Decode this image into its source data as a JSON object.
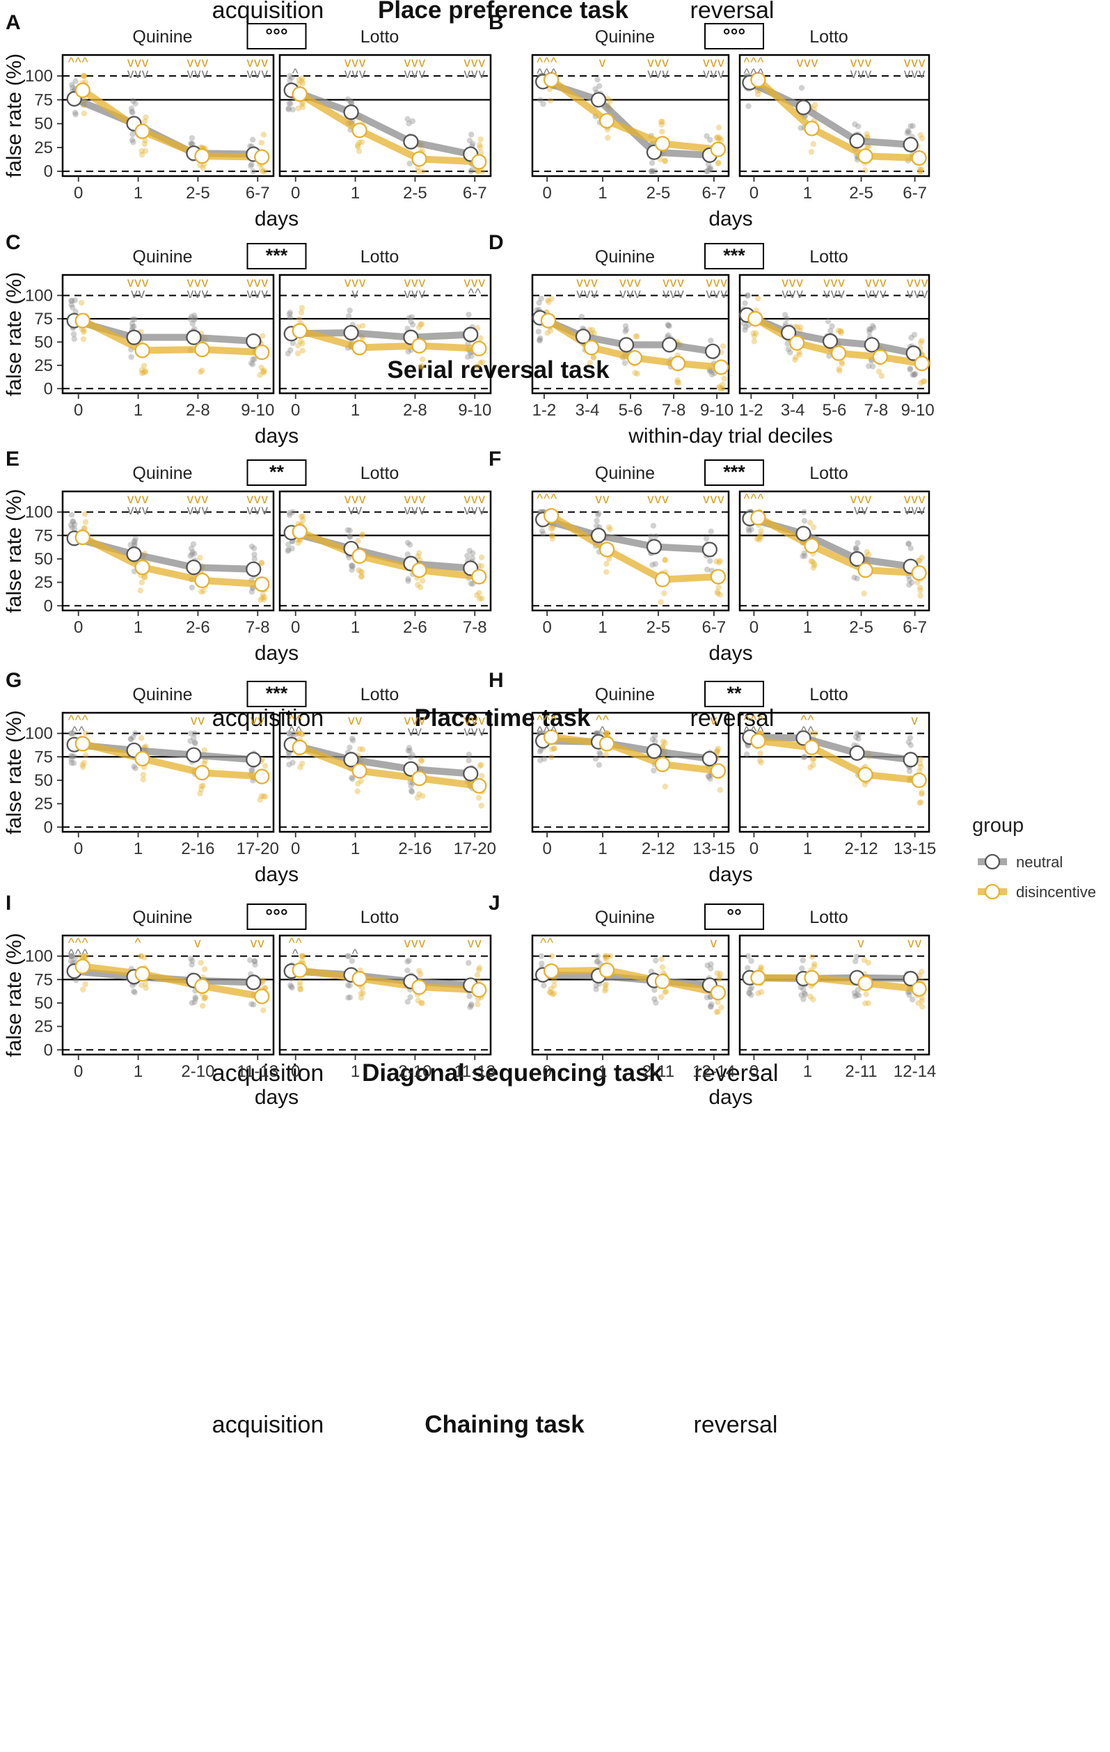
{
  "colors": {
    "neutral": "#8c8c8c",
    "disincentive": "#e6b12e",
    "neutral_sig": "#7f7f7f",
    "disincentive_sig": "#d4a020"
  },
  "legend": {
    "title": "group",
    "items": [
      "neutral",
      "disincentive"
    ]
  },
  "y_axis": {
    "label": "false rate (%)",
    "ticks": [
      0,
      25,
      50,
      75,
      100
    ],
    "ylim": [
      -5,
      122
    ],
    "dashed_lines": [
      0,
      100
    ],
    "solid_line": 75
  },
  "labels": {
    "quinine": "Quinine",
    "lotto": "Lotto"
  },
  "tasks": [
    {
      "title": "Place preference task",
      "left": "acquisition",
      "right": "reversal"
    },
    {
      "title": "Serial reversal task",
      "left": "",
      "right": ""
    },
    {
      "title": "Place time task",
      "left": "acquisition",
      "right": "reversal"
    },
    {
      "title": "Diagonal sequencing task",
      "left": "acquisition",
      "right": "reversal"
    },
    {
      "title": "Chaining task",
      "left": "acquisition",
      "right": "reversal"
    }
  ],
  "chart_data": [
    {
      "letter": "A",
      "type": "line",
      "compare": "°°°",
      "xlabel": "days",
      "categories": [
        "0",
        "1",
        "2-5",
        "6-7"
      ],
      "quinine": {
        "neutral": [
          76,
          50,
          19,
          18
        ],
        "disincentive": [
          85,
          42,
          16,
          15
        ],
        "neutral_sig": [
          "",
          "vvv",
          "vvv",
          "vvv"
        ],
        "disincentive_sig": [
          "^^^",
          "vvv",
          "vvv",
          "vvv"
        ]
      },
      "lotto": {
        "neutral": [
          85,
          62,
          31,
          18
        ],
        "disincentive": [
          81,
          43,
          13,
          10
        ],
        "neutral_sig": [
          "^",
          "vvv",
          "vvv",
          "vvv"
        ],
        "disincentive_sig": [
          "",
          "vvv",
          "vvv",
          "vvv"
        ]
      }
    },
    {
      "letter": "B",
      "type": "line",
      "compare": "°°°",
      "xlabel": "days",
      "categories": [
        "0",
        "1",
        "2-5",
        "6-7"
      ],
      "quinine": {
        "neutral": [
          94,
          75,
          20,
          17
        ],
        "disincentive": [
          96,
          53,
          29,
          23
        ],
        "neutral_sig": [
          "^^^",
          "",
          "vvv",
          "vvv"
        ],
        "disincentive_sig": [
          "^^^",
          "v",
          "vvv",
          "vvv"
        ]
      },
      "lotto": {
        "neutral": [
          93,
          67,
          32,
          28
        ],
        "disincentive": [
          96,
          45,
          16,
          14
        ],
        "neutral_sig": [
          "^^^",
          "",
          "vvv",
          "vvv"
        ],
        "disincentive_sig": [
          "^^^",
          "vvv",
          "vvv",
          "vvv"
        ]
      }
    },
    {
      "letter": "C",
      "type": "line",
      "compare": "***",
      "xlabel": "days",
      "categories": [
        "0",
        "1",
        "2-8",
        "9-10"
      ],
      "quinine": {
        "neutral": [
          73,
          55,
          55,
          51
        ],
        "disincentive": [
          73,
          41,
          42,
          39
        ],
        "neutral_sig": [
          "",
          "vv",
          "vvv",
          "vvv"
        ],
        "disincentive_sig": [
          "",
          "vvv",
          "vvv",
          "vvv"
        ]
      },
      "lotto": {
        "neutral": [
          59,
          60,
          55,
          58
        ],
        "disincentive": [
          62,
          44,
          46,
          43
        ],
        "neutral_sig": [
          "",
          "v",
          "vvv",
          "^^"
        ],
        "disincentive_sig": [
          "",
          "vvv",
          "vvv",
          "vvv"
        ]
      }
    },
    {
      "letter": "D",
      "type": "line",
      "compare": "***",
      "xlabel": "within-day trial deciles",
      "categories": [
        "1-2",
        "3-4",
        "5-6",
        "7-8",
        "9-10"
      ],
      "quinine": {
        "neutral": [
          76,
          56,
          47,
          47,
          40
        ],
        "disincentive": [
          73,
          44,
          33,
          27,
          23
        ],
        "neutral_sig": [
          "",
          "vvv",
          "vvv",
          "vvv",
          "vvv"
        ],
        "disincentive_sig": [
          "",
          "vvv",
          "vvv",
          "vvv",
          "vvv"
        ]
      },
      "lotto": {
        "neutral": [
          79,
          60,
          51,
          47,
          38
        ],
        "disincentive": [
          75,
          49,
          38,
          34,
          27
        ],
        "neutral_sig": [
          "",
          "vvv",
          "vvv",
          "vvv",
          "vvv"
        ],
        "disincentive_sig": [
          "",
          "vvv",
          "vvv",
          "vvv",
          "vvv"
        ]
      }
    },
    {
      "letter": "E",
      "type": "line",
      "compare": "**",
      "xlabel": "days",
      "categories": [
        "0",
        "1",
        "2-6",
        "7-8"
      ],
      "quinine": {
        "neutral": [
          72,
          55,
          41,
          39
        ],
        "disincentive": [
          73,
          41,
          27,
          23
        ],
        "neutral_sig": [
          "",
          "vvv",
          "vvv",
          "vvv"
        ],
        "disincentive_sig": [
          "",
          "vvv",
          "vvv",
          "vvv"
        ]
      },
      "lotto": {
        "neutral": [
          78,
          61,
          45,
          40
        ],
        "disincentive": [
          79,
          53,
          38,
          31
        ],
        "neutral_sig": [
          "",
          "vv",
          "vvv",
          "vvv"
        ],
        "disincentive_sig": [
          "",
          "vvv",
          "vvv",
          "vvv"
        ]
      }
    },
    {
      "letter": "F",
      "type": "line",
      "compare": "***",
      "xlabel": "days",
      "categories": [
        "0",
        "1",
        "2-5",
        "6-7"
      ],
      "quinine": {
        "neutral": [
          92,
          75,
          63,
          60
        ],
        "disincentive": [
          96,
          60,
          28,
          31
        ],
        "neutral_sig": [
          "",
          "",
          "",
          ""
        ],
        "disincentive_sig": [
          "^^^",
          "vv",
          "vvv",
          "vvv"
        ]
      },
      "lotto": {
        "neutral": [
          93,
          77,
          50,
          42
        ],
        "disincentive": [
          94,
          64,
          38,
          35
        ],
        "neutral_sig": [
          "",
          "",
          "vv",
          "vvv"
        ],
        "disincentive_sig": [
          "^^^",
          "",
          "vvv",
          "vvv"
        ]
      }
    },
    {
      "letter": "G",
      "type": "line",
      "compare": "***",
      "xlabel": "days",
      "categories": [
        "0",
        "1",
        "2-16",
        "17-20"
      ],
      "quinine": {
        "neutral": [
          88,
          82,
          77,
          72
        ],
        "disincentive": [
          89,
          73,
          58,
          54
        ],
        "neutral_sig": [
          "^^",
          "",
          "",
          ""
        ],
        "disincentive_sig": [
          "^^^",
          "",
          "vv",
          "vv"
        ]
      },
      "lotto": {
        "neutral": [
          88,
          72,
          62,
          57
        ],
        "disincentive": [
          85,
          60,
          52,
          44
        ],
        "neutral_sig": [
          "^^",
          "",
          "vv",
          "vvv"
        ],
        "disincentive_sig": [
          "^^",
          "vv",
          "vvv",
          "vvv"
        ]
      }
    },
    {
      "letter": "H",
      "type": "line",
      "compare": "**",
      "xlabel": "days",
      "categories": [
        "0",
        "1",
        "2-12",
        "13-15"
      ],
      "quinine": {
        "neutral": [
          92,
          91,
          81,
          73
        ],
        "disincentive": [
          96,
          89,
          67,
          60
        ],
        "neutral_sig": [
          "^^^",
          "^",
          "",
          ""
        ],
        "disincentive_sig": [
          "^^^",
          "^^",
          "",
          "v"
        ]
      },
      "lotto": {
        "neutral": [
          96,
          95,
          79,
          72
        ],
        "disincentive": [
          92,
          85,
          56,
          50
        ],
        "neutral_sig": [
          "^^^",
          "^^",
          "",
          ""
        ],
        "disincentive_sig": [
          "^^^",
          "^^",
          "",
          "v"
        ]
      }
    },
    {
      "letter": "I",
      "type": "line",
      "compare": "°°°",
      "xlabel": "days",
      "categories": [
        "0",
        "1",
        "2-10",
        "11-13"
      ],
      "quinine": {
        "neutral": [
          84,
          78,
          74,
          72
        ],
        "disincentive": [
          89,
          81,
          68,
          57
        ],
        "neutral_sig": [
          "^^^",
          "",
          "",
          ""
        ],
        "disincentive_sig": [
          "^^^",
          "^",
          "v",
          "vv"
        ]
      },
      "lotto": {
        "neutral": [
          84,
          80,
          73,
          69
        ],
        "disincentive": [
          85,
          76,
          67,
          64
        ],
        "neutral_sig": [
          "^",
          "^",
          "",
          ""
        ],
        "disincentive_sig": [
          "^^",
          "",
          "vvv",
          "vv"
        ]
      }
    },
    {
      "letter": "J",
      "type": "line",
      "compare": "°°",
      "xlabel": "days",
      "categories": [
        "0",
        "1",
        "2-11",
        "12-14"
      ],
      "quinine": {
        "neutral": [
          80,
          79,
          74,
          69
        ],
        "disincentive": [
          84,
          85,
          73,
          61
        ],
        "neutral_sig": [
          "",
          "",
          "",
          ""
        ],
        "disincentive_sig": [
          "^^",
          "",
          "",
          "v"
        ]
      },
      "lotto": {
        "neutral": [
          77,
          76,
          77,
          76
        ],
        "disincentive": [
          77,
          77,
          71,
          65
        ],
        "neutral_sig": [
          "",
          "",
          "",
          ""
        ],
        "disincentive_sig": [
          "",
          "",
          "v",
          "vv"
        ]
      }
    }
  ]
}
